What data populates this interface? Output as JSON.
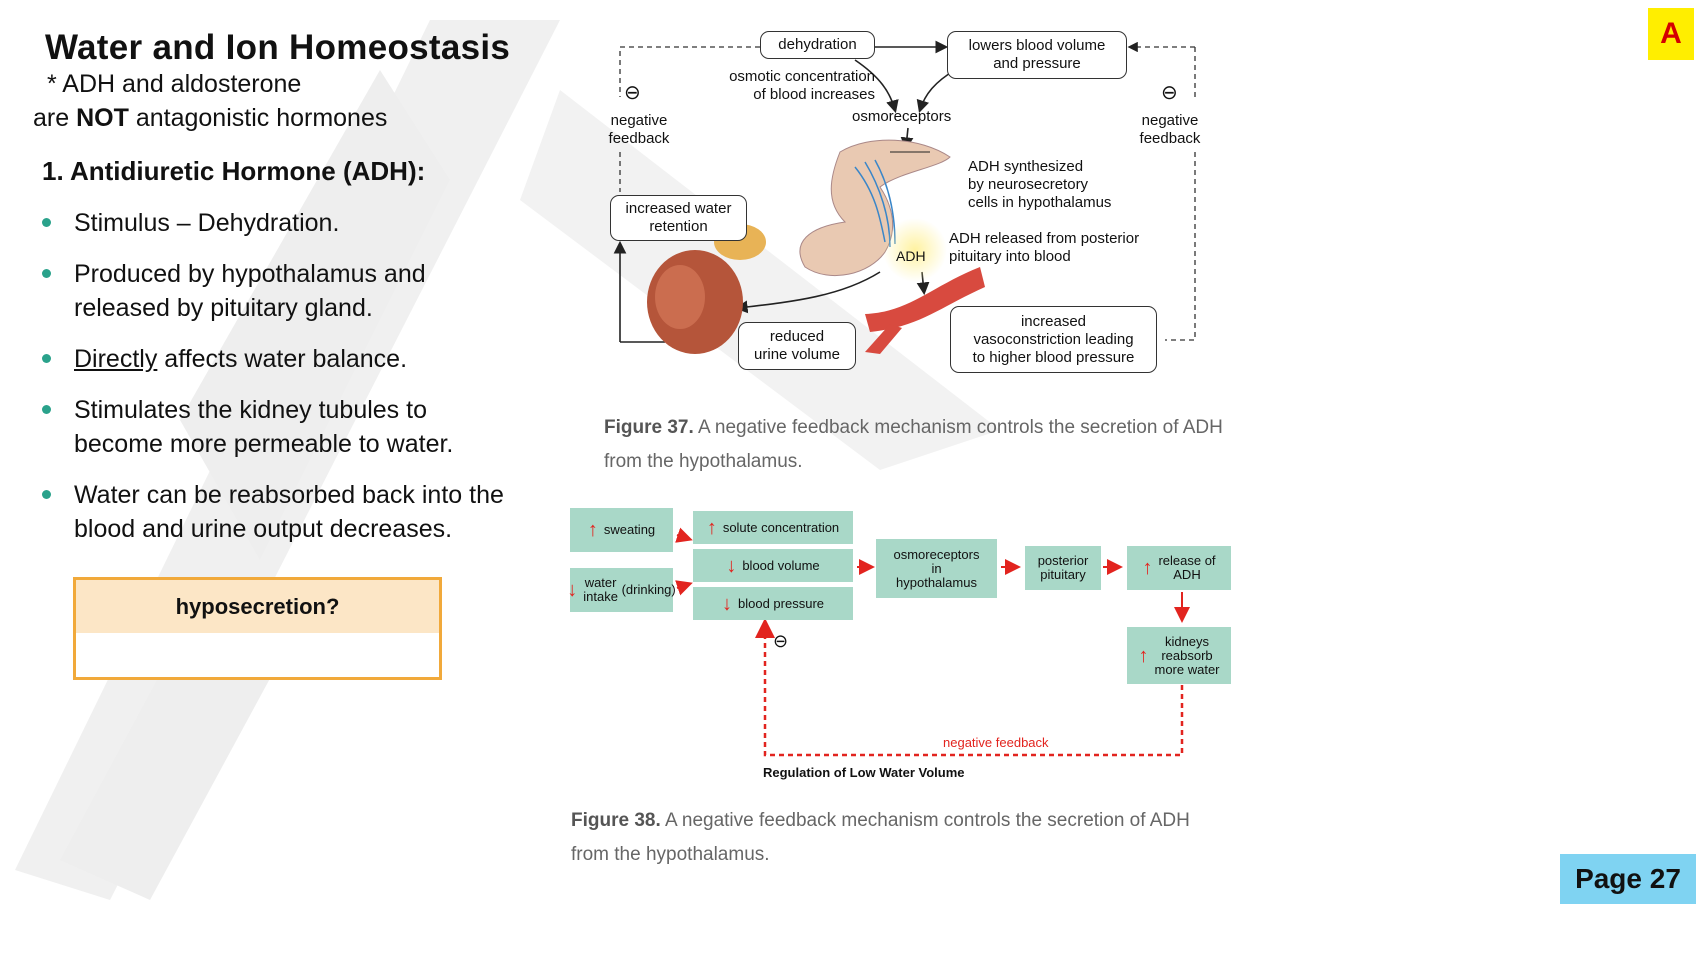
{
  "page": {
    "title": "Water and Ion Homeostasis",
    "note_line1": "* ADH and aldosterone",
    "note_line2_pre": "are ",
    "note_line2_bold": "NOT",
    "note_line2_post": " antagonistic hormones",
    "section_heading": "1. Antidiuretic Hormone (ADH):",
    "bullets": [
      {
        "lines": [
          "Stimulus – Dehydration."
        ]
      },
      {
        "lines": [
          "Produced by hypothalamus and",
          "released by pituitary gland."
        ]
      },
      {
        "underlined": "Directly",
        "rest": " affects water balance."
      },
      {
        "lines": [
          "Stimulates the kidney tubules to",
          "become more permeable to water."
        ]
      },
      {
        "lines": [
          "Water can be reabsorbed back into the",
          "blood and urine output decreases."
        ]
      }
    ],
    "hypo_box_title": "hyposecretion?",
    "corner_badge": "A",
    "page_number": "Page 27"
  },
  "figure37": {
    "dehydration": "dehydration",
    "lowers_blood": [
      "lowers blood volume",
      "and pressure"
    ],
    "osmotic": [
      "osmotic concentration",
      "of blood increases"
    ],
    "osmoreceptors": "osmoreceptors",
    "neg_feedback_left": [
      "negative",
      "feedback"
    ],
    "neg_feedback_right": [
      "negative",
      "feedback"
    ],
    "minus": "⊖",
    "increased_water": [
      "increased water",
      "retention"
    ],
    "adh_synth": [
      "ADH synthesized",
      "by neurosecretory",
      "cells in hypothalamus"
    ],
    "adh_released": [
      "ADH released from posterior",
      "pituitary into blood"
    ],
    "adh": "ADH",
    "reduced_urine": [
      "reduced",
      "urine volume"
    ],
    "vasoconstriction": [
      "increased",
      "vasoconstriction leading",
      "to higher blood pressure"
    ],
    "caption_label": "Figure 37.",
    "caption_text": " A negative feedback mechanism controls the secretion of ADH from the hypothalamus."
  },
  "figure38": {
    "sweating": "sweating",
    "water_intake": [
      "water intake",
      "(drinking)"
    ],
    "solute": "solute concentration",
    "blood_volume": "blood volume",
    "blood_pressure": "blood pressure",
    "osmoreceptors": [
      "osmoreceptors",
      "in",
      "hypothalamus"
    ],
    "posterior": [
      "posterior",
      "pituitary"
    ],
    "release_adh": [
      "release of",
      "ADH"
    ],
    "kidneys": [
      "kidneys",
      "reabsorb",
      "more water"
    ],
    "negative_feedback": "negative feedback",
    "minus": "⊖",
    "diagram_title": "Regulation of Low Water Volume",
    "caption_label": "Figure 38.",
    "caption_text": " A negative feedback mechanism controls the secretion of ADH from the hypothalamus."
  },
  "colors": {
    "bullet": "#2aa28b",
    "box_fill": "#a9d8c8",
    "arrow_red": "#e2241f",
    "hypo_border": "#f1a93a",
    "hypo_header": "#fce6c6",
    "badge_yellow": "#ffee00",
    "page_badge": "#7fd3f2"
  }
}
